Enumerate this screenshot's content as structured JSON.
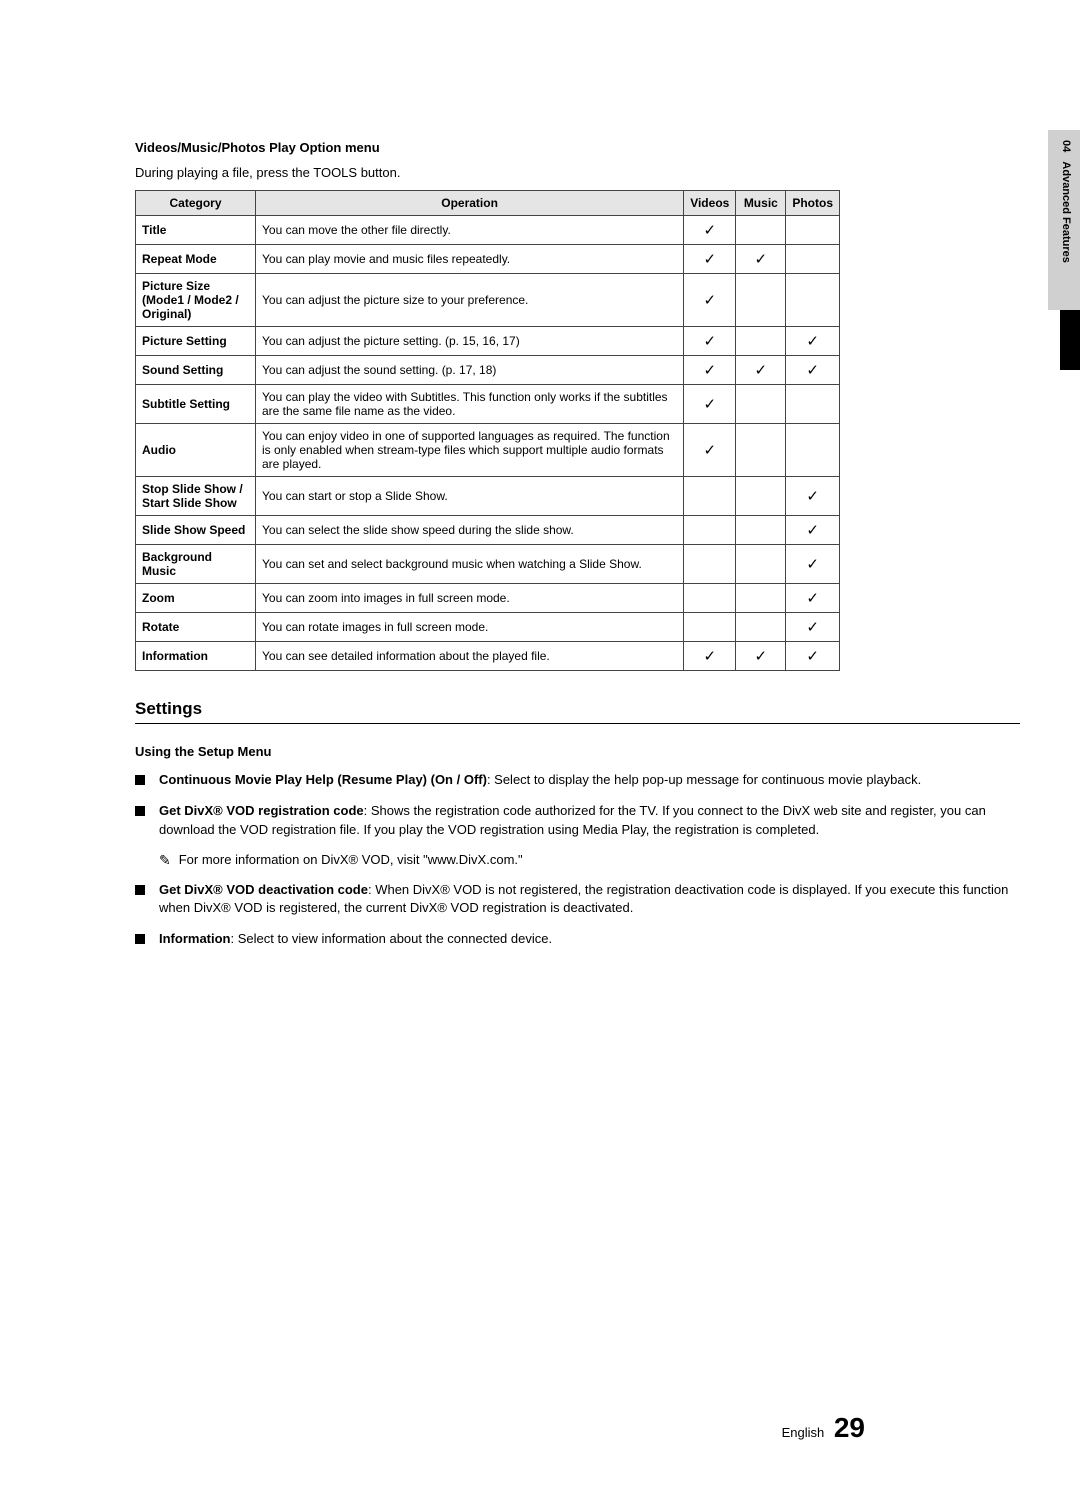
{
  "sidebar": {
    "chapter": "04",
    "title": "Advanced Features"
  },
  "header": {
    "title": "Videos/Music/Photos Play Option menu",
    "intro": "During playing a file, press the TOOLS button."
  },
  "table": {
    "headers": {
      "category": "Category",
      "operation": "Operation",
      "videos": "Videos",
      "music": "Music",
      "photos": "Photos"
    },
    "rows": [
      {
        "cat": "Title",
        "op": "You can move the other file directly.",
        "v": "✓",
        "m": "",
        "p": ""
      },
      {
        "cat": "Repeat Mode",
        "op": "You can play movie and music files repeatedly.",
        "v": "✓",
        "m": "✓",
        "p": ""
      },
      {
        "cat": "Picture Size (Mode1 / Mode2 / Original)",
        "op": "You can adjust the picture size to your preference.",
        "v": "✓",
        "m": "",
        "p": ""
      },
      {
        "cat": "Picture Setting",
        "op": "You can adjust the picture setting. (p. 15, 16, 17)",
        "v": "✓",
        "m": "",
        "p": "✓"
      },
      {
        "cat": "Sound Setting",
        "op": "You can adjust the sound setting. (p. 17, 18)",
        "v": "✓",
        "m": "✓",
        "p": "✓"
      },
      {
        "cat": "Subtitle Setting",
        "op": "You can play the video with Subtitles. This function only works if the subtitles are the same file name as the video.",
        "v": "✓",
        "m": "",
        "p": ""
      },
      {
        "cat": "Audio",
        "op": "You can enjoy video in one of supported languages as required. The function is only enabled when stream-type files which support multiple audio formats are played.",
        "v": "✓",
        "m": "",
        "p": ""
      },
      {
        "cat": "Stop Slide Show / Start Slide Show",
        "op": "You can start or stop a Slide Show.",
        "v": "",
        "m": "",
        "p": "✓"
      },
      {
        "cat": "Slide Show Speed",
        "op": "You can select the slide show speed during the slide show.",
        "v": "",
        "m": "",
        "p": "✓"
      },
      {
        "cat": "Background Music",
        "op": "You can set and select background music when watching a Slide Show.",
        "v": "",
        "m": "",
        "p": "✓"
      },
      {
        "cat": "Zoom",
        "op": "You can zoom into images in full screen mode.",
        "v": "",
        "m": "",
        "p": "✓"
      },
      {
        "cat": "Rotate",
        "op": "You can rotate images in full screen mode.",
        "v": "",
        "m": "",
        "p": "✓"
      },
      {
        "cat": "Information",
        "op": "You can see detailed information about the played file.",
        "v": "✓",
        "m": "✓",
        "p": "✓"
      }
    ]
  },
  "settings": {
    "title": "Settings",
    "subhead": "Using the Setup Menu",
    "items": [
      {
        "bold": "Continuous Movie Play Help (Resume Play) (On / Off)",
        "rest": ": Select to display the help pop-up message for continuous movie playback."
      },
      {
        "bold": "Get DivX® VOD registration code",
        "rest": ": Shows the registration code authorized for the TV. If you connect to the DivX web site and register, you can download the VOD registration file. If you play the VOD registration using Media Play, the registration is completed."
      },
      {
        "bold": "Get DivX® VOD deactivation code",
        "rest": ": When DivX® VOD is not registered, the registration deactivation code is displayed. If you execute this function when DivX® VOD is registered, the current DivX® VOD registration is deactivated."
      },
      {
        "bold": "Information",
        "rest": ": Select to view information about the connected device."
      }
    ],
    "note": "For more information on DivX® VOD, visit \"www.DivX.com.\""
  },
  "footer": {
    "lang": "English",
    "page": "29"
  }
}
